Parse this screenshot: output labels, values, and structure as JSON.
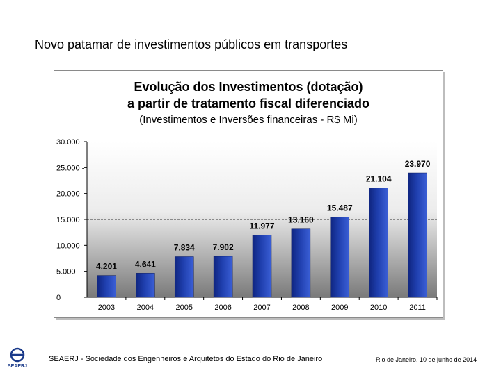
{
  "slide": {
    "title": "Novo patamar de investimentos públicos em transportes"
  },
  "chart_data": {
    "type": "bar",
    "title_line1": "Evolução dos Investimentos (dotação)",
    "title_line2": "a partir de tratamento fiscal diferenciado",
    "subtitle": "(Investimentos e Inversões financeiras - R$ Mi)",
    "categories": [
      "2003",
      "2004",
      "2005",
      "2006",
      "2007",
      "2008",
      "2009",
      "2010",
      "2011"
    ],
    "values": [
      4201,
      4641,
      7834,
      7902,
      11977,
      13160,
      15487,
      21104,
      23970
    ],
    "value_labels": [
      "4.201",
      "4.641",
      "7.834",
      "7.902",
      "11.977",
      "13.160",
      "15.487",
      "21.104",
      "23.970"
    ],
    "y_ticks": [
      0,
      5000,
      10000,
      15000,
      20000,
      25000,
      30000
    ],
    "y_tick_labels": [
      "0",
      "5.000",
      "10.000",
      "15.000",
      "20.000",
      "25.000 -",
      "30.000"
    ],
    "ylim": [
      0,
      30000
    ],
    "reference_line": 15000,
    "grid": false,
    "legend": "none",
    "bar_color": "#1f3fae"
  },
  "footer": {
    "logo_text": "SEAERJ",
    "organization": "SEAERJ - Sociedade dos Engenheiros e Arquitetos do Estado do Rio de Janeiro",
    "date": "Rio de Janeiro, 10 de junho de 2014"
  }
}
